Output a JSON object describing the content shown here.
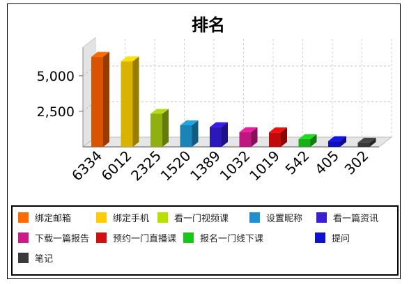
{
  "chart_data": {
    "type": "bar",
    "title": "排名",
    "xlabel": "",
    "ylabel": "",
    "ylim": [
      0,
      7000
    ],
    "yticks": [
      "2,500",
      "5,000"
    ],
    "grid": true,
    "legend_position": "bottom",
    "categories": [
      "6334",
      "6012",
      "2325",
      "1520",
      "1389",
      "1032",
      "1019",
      "542",
      "405",
      "302"
    ],
    "series": [
      {
        "name": "绑定邮箱",
        "value": 6334,
        "color": "#d85400"
      },
      {
        "name": "绑定手机",
        "value": 6012,
        "color": "#d9b300"
      },
      {
        "name": "看一门视频课",
        "value": 2325,
        "color": "#8fb010"
      },
      {
        "name": "设置昵称",
        "value": 1520,
        "color": "#1a84b6"
      },
      {
        "name": "看一篇资讯",
        "value": 1389,
        "color": "#2c17bb"
      },
      {
        "name": "下载一篇报告",
        "value": 1032,
        "color": "#c01680"
      },
      {
        "name": "预约一门直播课",
        "value": 1019,
        "color": "#c20a0a"
      },
      {
        "name": "报名一门线下课",
        "value": 542,
        "color": "#18b018"
      },
      {
        "name": "提问",
        "value": 405,
        "color": "#1010c0"
      },
      {
        "name": "笔记",
        "value": 302,
        "color": "#383838"
      }
    ]
  },
  "legend_colors": [
    "#ff6a00",
    "#ffcc00",
    "#b5e000",
    "#1e8fd0",
    "#3a1fd6",
    "#cc1a8a",
    "#d21010",
    "#18c818",
    "#1010d0",
    "#3a3a3a"
  ]
}
